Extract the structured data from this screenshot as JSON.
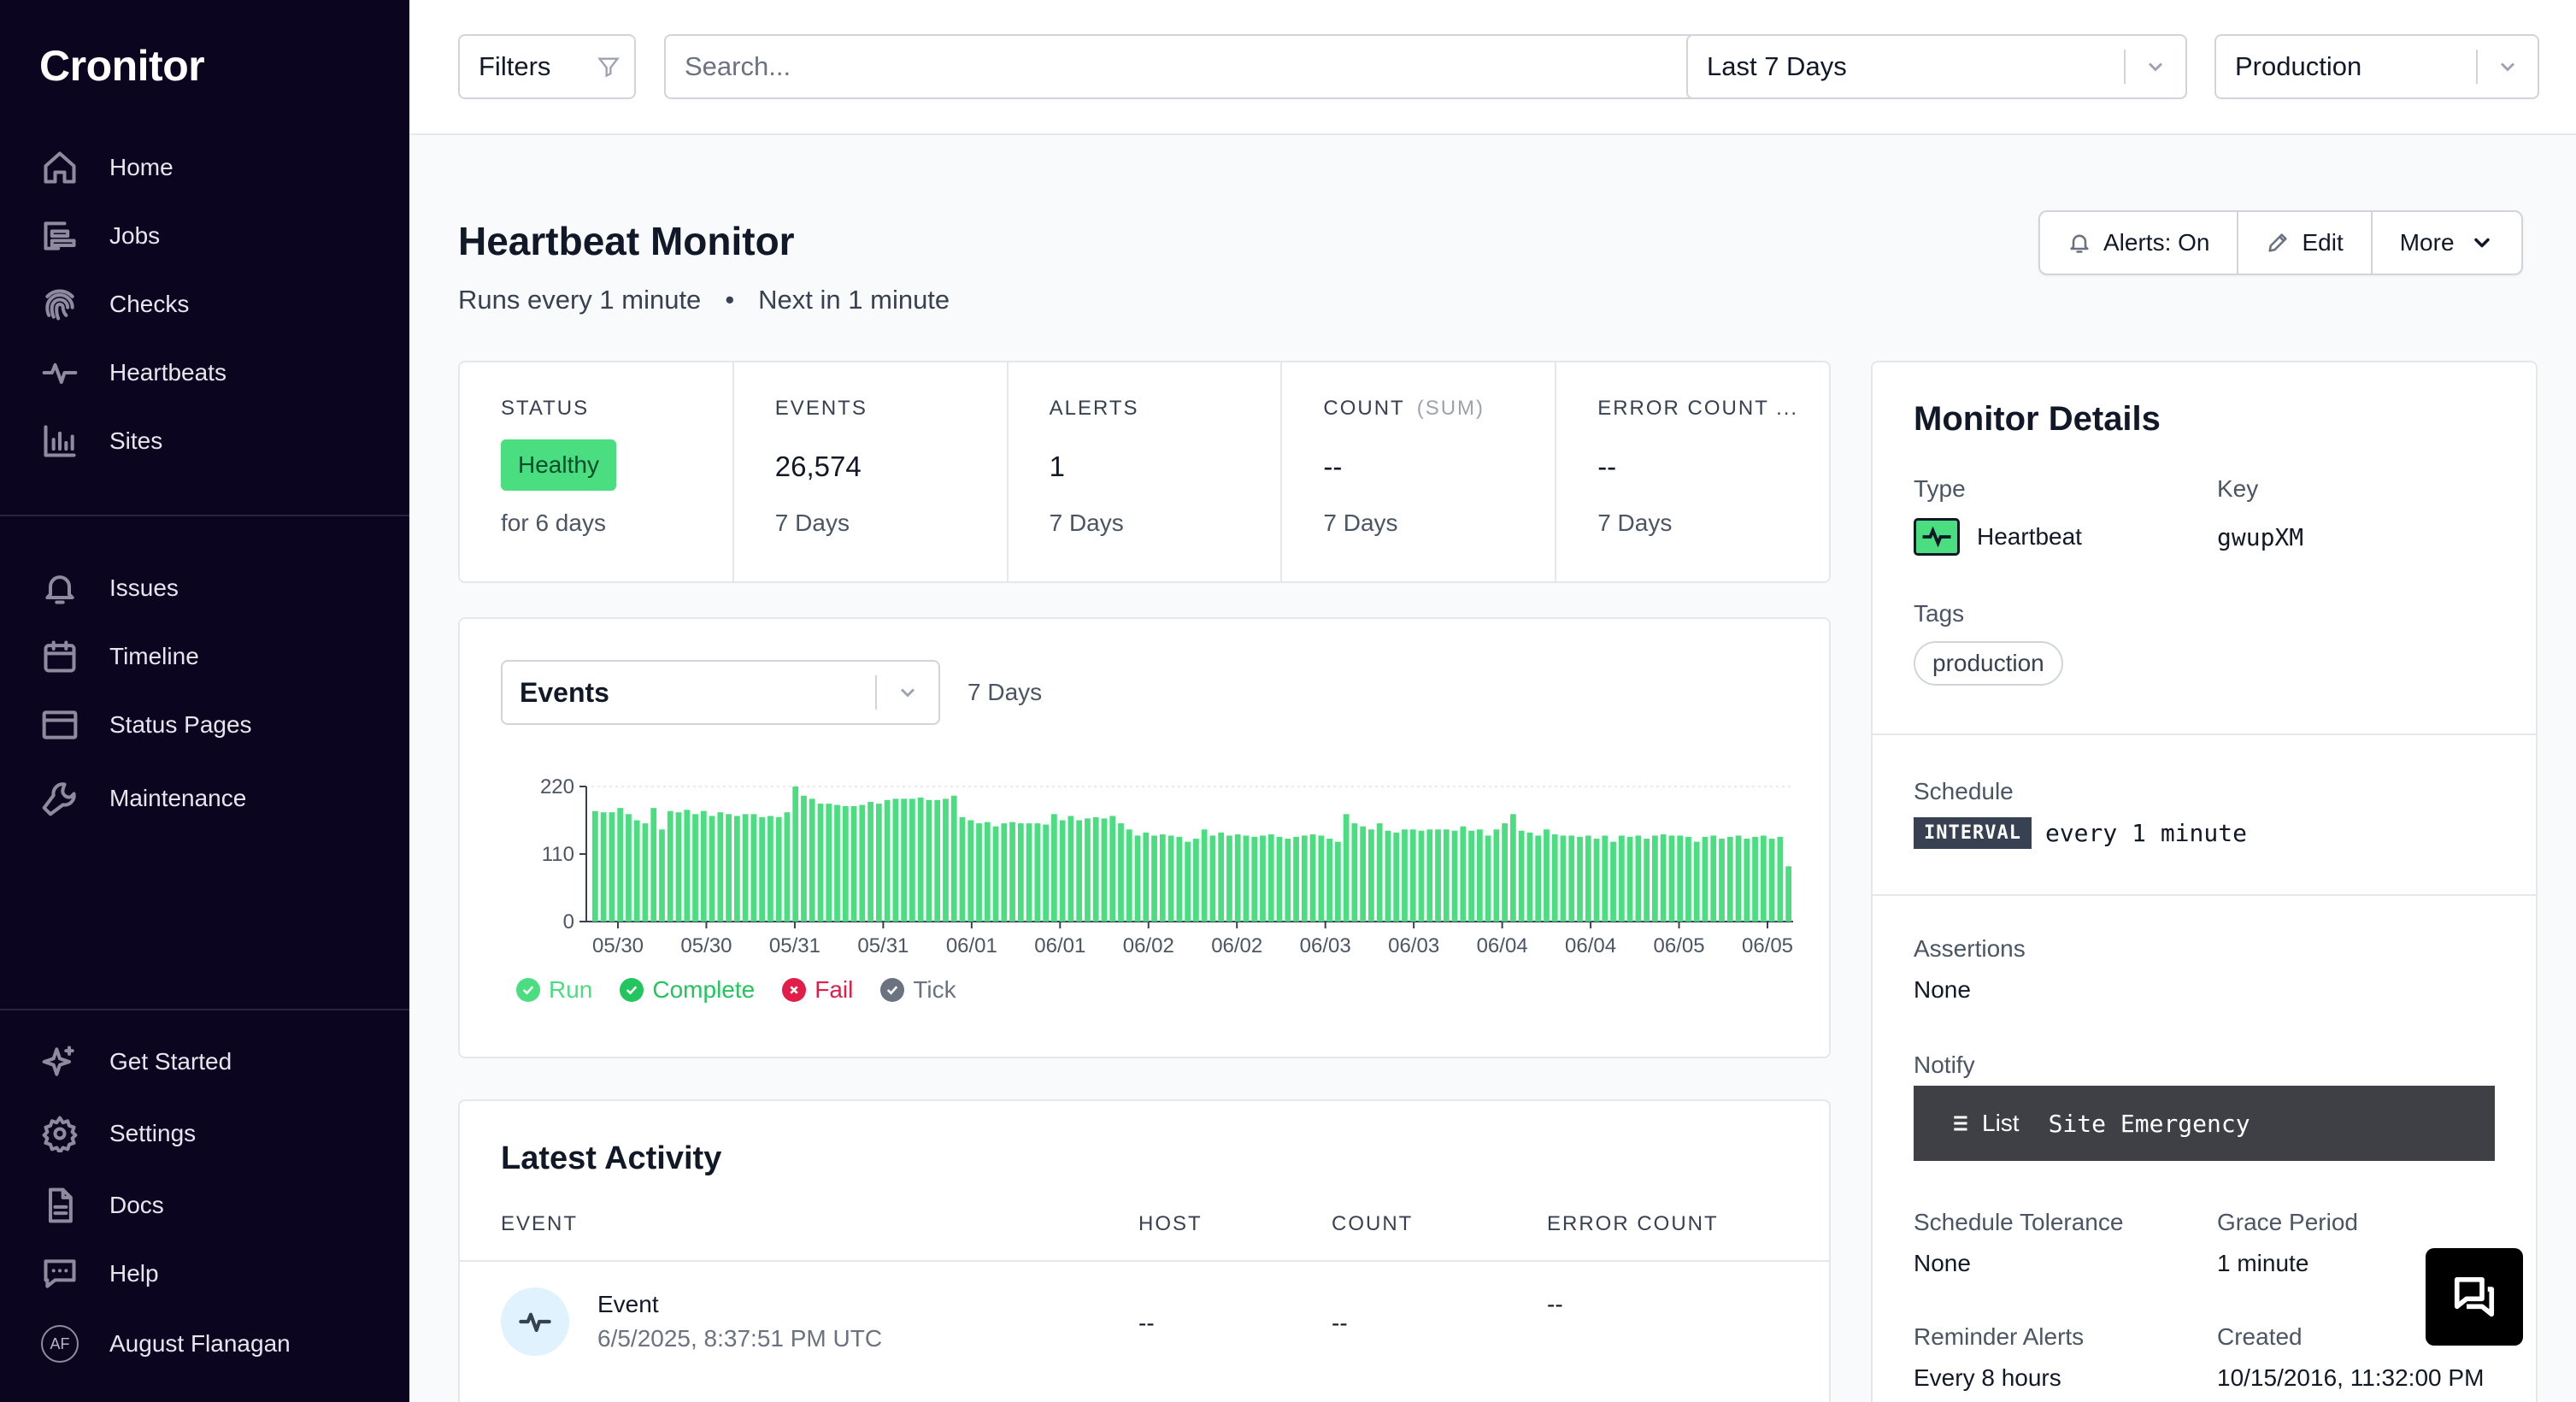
{
  "brand": {
    "logo": "Cronitor"
  },
  "sidebar": {
    "primary": [
      {
        "label": "Home",
        "icon": "home-icon"
      },
      {
        "label": "Jobs",
        "icon": "jobs-icon"
      },
      {
        "label": "Checks",
        "icon": "fingerprint-icon"
      },
      {
        "label": "Heartbeats",
        "icon": "heartbeat-icon"
      },
      {
        "label": "Sites",
        "icon": "bar-chart-icon"
      }
    ],
    "secondary": [
      {
        "label": "Issues",
        "icon": "bell-icon"
      },
      {
        "label": "Timeline",
        "icon": "calendar-icon"
      },
      {
        "label": "Status Pages",
        "icon": "browser-icon"
      },
      {
        "label": "Maintenance",
        "icon": "wrench-icon"
      }
    ],
    "footer": [
      {
        "label": "Get Started",
        "icon": "sparkles-icon"
      },
      {
        "label": "Settings",
        "icon": "gear-icon"
      },
      {
        "label": "Docs",
        "icon": "document-icon"
      },
      {
        "label": "Help",
        "icon": "chat-icon"
      },
      {
        "label": "August Flanagan",
        "icon": "avatar",
        "initials": "AF"
      }
    ]
  },
  "topbar": {
    "filters_label": "Filters",
    "search_placeholder": "Search...",
    "time_range": "Last 7 Days",
    "environment": "Production"
  },
  "header": {
    "title": "Heartbeat Monitor",
    "schedule_text": "Runs every 1 minute",
    "separator": "•",
    "next_text": "Next in 1 minute",
    "actions": {
      "alerts": "Alerts: On",
      "edit": "Edit",
      "more": "More"
    }
  },
  "stats": [
    {
      "label": "STATUS",
      "value": "Healthy",
      "sub": "for 6 days"
    },
    {
      "label": "EVENTS",
      "value": "26,574",
      "sub": "7 Days"
    },
    {
      "label": "ALERTS",
      "value": "1",
      "sub": "7 Days"
    },
    {
      "label": "COUNT",
      "label_suffix": "(SUM)",
      "value": "--",
      "sub": "7 Days"
    },
    {
      "label": "ERROR COUNT ...",
      "value": "--",
      "sub": "7 Days"
    }
  ],
  "chart_panel": {
    "metric": "Events",
    "range": "7 Days",
    "legend": [
      {
        "label": "Run",
        "color": "#4ade80"
      },
      {
        "label": "Complete",
        "color": "#22c55e"
      },
      {
        "label": "Fail",
        "color": "#e11d48"
      },
      {
        "label": "Tick",
        "color": "#6b7280"
      }
    ]
  },
  "chart_data": {
    "type": "bar",
    "color": "#4ade80",
    "ylim": [
      0,
      220
    ],
    "yticks": [
      0,
      110,
      220
    ],
    "xticks": [
      "05/30",
      "05/30",
      "05/31",
      "05/31",
      "06/01",
      "06/01",
      "06/02",
      "06/02",
      "06/03",
      "06/03",
      "06/04",
      "06/04",
      "06/05",
      "06/05"
    ],
    "grid": "dashed line at 220",
    "values": [
      180,
      178,
      178,
      185,
      175,
      165,
      160,
      185,
      150,
      180,
      178,
      182,
      175,
      180,
      172,
      178,
      175,
      172,
      175,
      175,
      170,
      172,
      170,
      178,
      220,
      205,
      200,
      192,
      192,
      190,
      188,
      188,
      190,
      195,
      192,
      198,
      200,
      200,
      200,
      202,
      198,
      198,
      200,
      205,
      170,
      165,
      160,
      162,
      155,
      160,
      162,
      160,
      160,
      160,
      158,
      175,
      165,
      172,
      165,
      168,
      170,
      168,
      172,
      160,
      150,
      140,
      145,
      140,
      142,
      140,
      138,
      130,
      135,
      150,
      140,
      145,
      140,
      142,
      140,
      138,
      140,
      142,
      138,
      135,
      138,
      140,
      142,
      140,
      135,
      130,
      175,
      160,
      155,
      150,
      160,
      148,
      145,
      150,
      150,
      148,
      150,
      150,
      150,
      148,
      155,
      148,
      150,
      140,
      150,
      160,
      175,
      148,
      145,
      140,
      150,
      142,
      140,
      140,
      138,
      140,
      135,
      140,
      130,
      140,
      138,
      140,
      135,
      140,
      142,
      140,
      140,
      138,
      130,
      138,
      140,
      135,
      138,
      140,
      135,
      138,
      140,
      135,
      138,
      90
    ]
  },
  "activity": {
    "title": "Latest Activity",
    "columns": [
      "EVENT",
      "HOST",
      "COUNT",
      "ERROR COUNT"
    ],
    "rows": [
      {
        "event": "Event",
        "time": "6/5/2025, 8:37:51 PM UTC",
        "host": "--",
        "count": "--",
        "error_count": "--"
      }
    ]
  },
  "details": {
    "title": "Monitor Details",
    "type_label": "Type",
    "type_value": "Heartbeat",
    "key_label": "Key",
    "key_value": "gwupXM",
    "tags_label": "Tags",
    "tags": [
      "production"
    ],
    "schedule_label": "Schedule",
    "schedule_badge": "INTERVAL",
    "schedule_value": "every 1 minute",
    "assertions_label": "Assertions",
    "assertions_value": "None",
    "notify_label": "Notify",
    "notify_list": "List",
    "notify_value": "Site Emergency",
    "tolerance_label": "Schedule Tolerance",
    "tolerance_value": "None",
    "grace_label": "Grace Period",
    "grace_value": "1 minute",
    "reminder_label": "Reminder Alerts",
    "reminder_value": "Every 8 hours",
    "created_label": "Created",
    "created_value": "10/15/2016, 11:32:00 PM"
  },
  "colors": {
    "sidebar_bg": "#0c0520",
    "healthy": "#4ade80",
    "accent_bar": "#4ade80"
  }
}
